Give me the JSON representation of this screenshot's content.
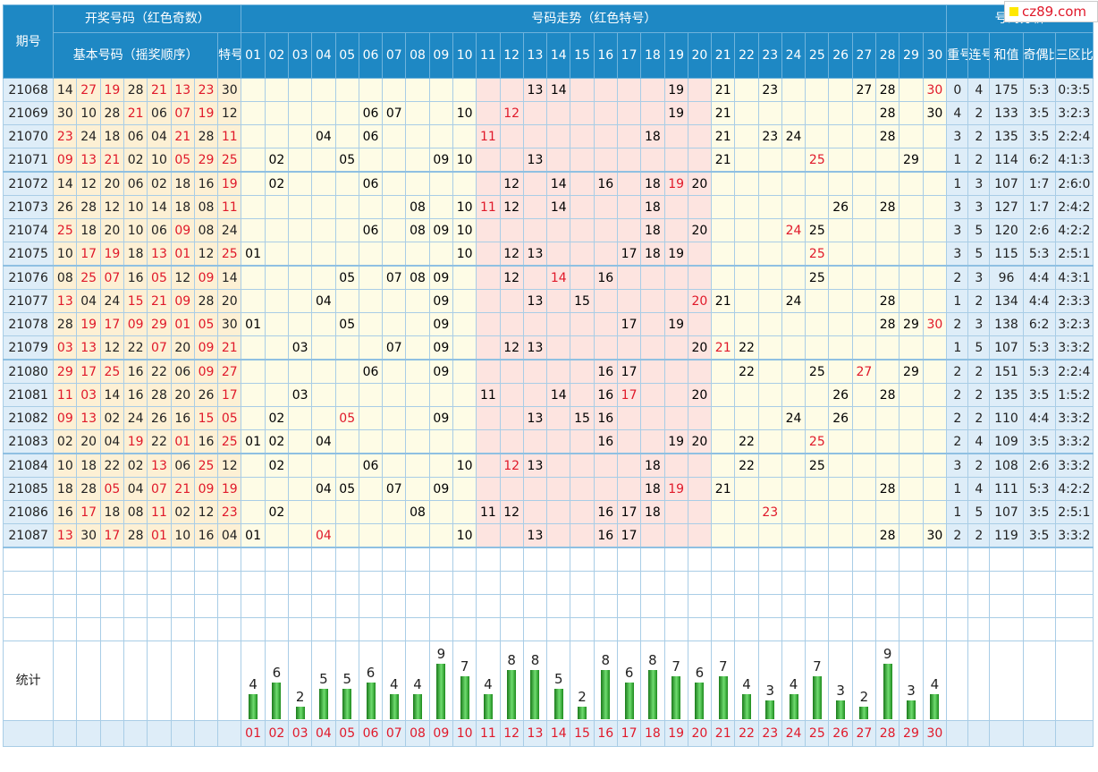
{
  "logo": {
    "text": "cz89.com"
  },
  "headers": {
    "period": "期号",
    "draw_group": "开奖号码（红色奇数）",
    "trend_group": "号码走势（红色特号）",
    "analysis_group": "号码分析",
    "basic": "基本号码（摇奖顺序）",
    "special": "特号",
    "repeat": "重号",
    "consecutive": "连号",
    "sum": "和值",
    "odd_even": "奇偶比例",
    "zone": "三区比例"
  },
  "numbers": [
    "01",
    "02",
    "03",
    "04",
    "05",
    "06",
    "07",
    "08",
    "09",
    "10",
    "11",
    "12",
    "13",
    "14",
    "15",
    "16",
    "17",
    "18",
    "19",
    "20",
    "21",
    "22",
    "23",
    "24",
    "25",
    "26",
    "27",
    "28",
    "29",
    "30"
  ],
  "stat_label": "统计",
  "colors": {
    "header": "#1e88c4",
    "odd": "#e0192a",
    "basic_bg": "#fdf0d4",
    "zone_mid_bg": "#fde4e0",
    "zone_side_bg": "#fefce6",
    "analysis_bg": "#deedf8",
    "bar": "#3cb33c"
  },
  "chart_data": {
    "type": "bar",
    "categories": [
      "01",
      "02",
      "03",
      "04",
      "05",
      "06",
      "07",
      "08",
      "09",
      "10",
      "11",
      "12",
      "13",
      "14",
      "15",
      "16",
      "17",
      "18",
      "19",
      "20",
      "21",
      "22",
      "23",
      "24",
      "25",
      "26",
      "27",
      "28",
      "29",
      "30"
    ],
    "values": [
      4,
      6,
      2,
      5,
      5,
      6,
      4,
      4,
      9,
      7,
      4,
      8,
      8,
      5,
      2,
      8,
      6,
      8,
      7,
      6,
      7,
      4,
      3,
      4,
      7,
      3,
      2,
      9,
      3,
      4
    ],
    "ylim": [
      0,
      9
    ]
  },
  "rows": [
    {
      "period": "21068",
      "basic": [
        "14",
        "27",
        "19",
        "28",
        "21",
        "13",
        "23"
      ],
      "special": "30",
      "repeat": "0",
      "consecutive": "4",
      "sum": "175",
      "odd_even": "5:3",
      "zone": "0:3:5"
    },
    {
      "period": "21069",
      "basic": [
        "30",
        "10",
        "28",
        "21",
        "06",
        "07",
        "19"
      ],
      "special": "12",
      "repeat": "4",
      "consecutive": "2",
      "sum": "133",
      "odd_even": "3:5",
      "zone": "3:2:3"
    },
    {
      "period": "21070",
      "basic": [
        "23",
        "24",
        "18",
        "06",
        "04",
        "21",
        "28"
      ],
      "special": "11",
      "repeat": "3",
      "consecutive": "2",
      "sum": "135",
      "odd_even": "3:5",
      "zone": "2:2:4"
    },
    {
      "period": "21071",
      "basic": [
        "09",
        "13",
        "21",
        "02",
        "10",
        "05",
        "29"
      ],
      "special": "25",
      "repeat": "1",
      "consecutive": "2",
      "sum": "114",
      "odd_even": "6:2",
      "zone": "4:1:3"
    },
    {
      "period": "21072",
      "basic": [
        "14",
        "12",
        "20",
        "06",
        "02",
        "18",
        "16"
      ],
      "special": "19",
      "repeat": "1",
      "consecutive": "3",
      "sum": "107",
      "odd_even": "1:7",
      "zone": "2:6:0"
    },
    {
      "period": "21073",
      "basic": [
        "26",
        "28",
        "12",
        "10",
        "14",
        "18",
        "08"
      ],
      "special": "11",
      "repeat": "3",
      "consecutive": "3",
      "sum": "127",
      "odd_even": "1:7",
      "zone": "2:4:2"
    },
    {
      "period": "21074",
      "basic": [
        "25",
        "18",
        "20",
        "10",
        "06",
        "09",
        "08"
      ],
      "special": "24",
      "repeat": "3",
      "consecutive": "5",
      "sum": "120",
      "odd_even": "2:6",
      "zone": "4:2:2"
    },
    {
      "period": "21075",
      "basic": [
        "10",
        "17",
        "19",
        "18",
        "13",
        "01",
        "12"
      ],
      "special": "25",
      "repeat": "3",
      "consecutive": "5",
      "sum": "115",
      "odd_even": "5:3",
      "zone": "2:5:1"
    },
    {
      "period": "21076",
      "basic": [
        "08",
        "25",
        "07",
        "16",
        "05",
        "12",
        "09"
      ],
      "special": "14",
      "repeat": "2",
      "consecutive": "3",
      "sum": "96",
      "odd_even": "4:4",
      "zone": "4:3:1"
    },
    {
      "period": "21077",
      "basic": [
        "13",
        "04",
        "24",
        "15",
        "21",
        "09",
        "28"
      ],
      "special": "20",
      "repeat": "1",
      "consecutive": "2",
      "sum": "134",
      "odd_even": "4:4",
      "zone": "2:3:3"
    },
    {
      "period": "21078",
      "basic": [
        "28",
        "19",
        "17",
        "09",
        "29",
        "01",
        "05"
      ],
      "special": "30",
      "repeat": "2",
      "consecutive": "3",
      "sum": "138",
      "odd_even": "6:2",
      "zone": "3:2:3"
    },
    {
      "period": "21079",
      "basic": [
        "03",
        "13",
        "12",
        "22",
        "07",
        "20",
        "09"
      ],
      "special": "21",
      "repeat": "1",
      "consecutive": "5",
      "sum": "107",
      "odd_even": "5:3",
      "zone": "3:3:2"
    },
    {
      "period": "21080",
      "basic": [
        "29",
        "17",
        "25",
        "16",
        "22",
        "06",
        "09"
      ],
      "special": "27",
      "repeat": "2",
      "consecutive": "2",
      "sum": "151",
      "odd_even": "5:3",
      "zone": "2:2:4"
    },
    {
      "period": "21081",
      "basic": [
        "11",
        "03",
        "14",
        "16",
        "28",
        "20",
        "26"
      ],
      "special": "17",
      "repeat": "2",
      "consecutive": "2",
      "sum": "135",
      "odd_even": "3:5",
      "zone": "1:5:2"
    },
    {
      "period": "21082",
      "basic": [
        "09",
        "13",
        "02",
        "24",
        "26",
        "16",
        "15"
      ],
      "special": "05",
      "repeat": "2",
      "consecutive": "2",
      "sum": "110",
      "odd_even": "4:4",
      "zone": "3:3:2"
    },
    {
      "period": "21083",
      "basic": [
        "02",
        "20",
        "04",
        "19",
        "22",
        "01",
        "16"
      ],
      "special": "25",
      "repeat": "2",
      "consecutive": "4",
      "sum": "109",
      "odd_even": "3:5",
      "zone": "3:3:2"
    },
    {
      "period": "21084",
      "basic": [
        "10",
        "18",
        "22",
        "02",
        "13",
        "06",
        "25"
      ],
      "special": "12",
      "repeat": "3",
      "consecutive": "2",
      "sum": "108",
      "odd_even": "2:6",
      "zone": "3:3:2"
    },
    {
      "period": "21085",
      "basic": [
        "18",
        "28",
        "05",
        "04",
        "07",
        "21",
        "09"
      ],
      "special": "19",
      "repeat": "1",
      "consecutive": "4",
      "sum": "111",
      "odd_even": "5:3",
      "zone": "4:2:2"
    },
    {
      "period": "21086",
      "basic": [
        "16",
        "17",
        "18",
        "08",
        "11",
        "02",
        "12"
      ],
      "special": "23",
      "repeat": "1",
      "consecutive": "5",
      "sum": "107",
      "odd_even": "3:5",
      "zone": "2:5:1"
    },
    {
      "period": "21087",
      "basic": [
        "13",
        "30",
        "17",
        "28",
        "01",
        "10",
        "16"
      ],
      "special": "04",
      "repeat": "2",
      "consecutive": "2",
      "sum": "119",
      "odd_even": "3:5",
      "zone": "3:3:2"
    }
  ]
}
